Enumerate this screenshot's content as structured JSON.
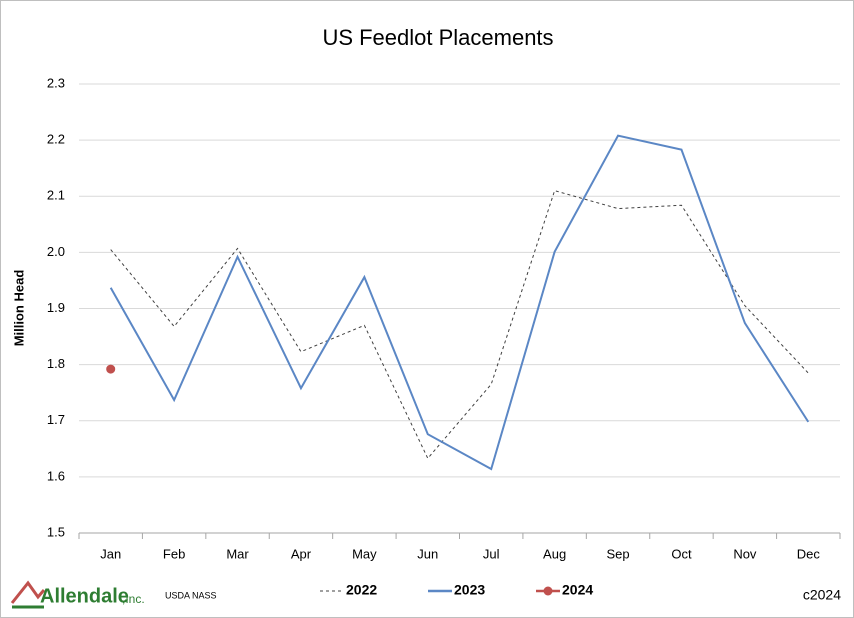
{
  "chart_data": {
    "type": "line",
    "title": "US Feedlot Placements",
    "ylabel": "Million Head",
    "categories": [
      "Jan",
      "Feb",
      "Mar",
      "Apr",
      "May",
      "Jun",
      "Jul",
      "Aug",
      "Sep",
      "Oct",
      "Nov",
      "Dec"
    ],
    "series": [
      {
        "name": "2022",
        "color": "#404040",
        "line_style": "dashed",
        "marker": false,
        "values": [
          2.005,
          1.868,
          2.007,
          1.823,
          1.87,
          1.633,
          1.765,
          2.11,
          2.078,
          2.084,
          1.905,
          1.785
        ]
      },
      {
        "name": "2023",
        "color": "#5b87c5",
        "line_style": "solid",
        "marker": false,
        "values": [
          1.937,
          1.737,
          1.992,
          1.758,
          1.956,
          1.676,
          1.614,
          2.001,
          2.208,
          2.183,
          1.874,
          1.698
        ]
      },
      {
        "name": "2024",
        "color": "#c0504d",
        "line_style": "solid",
        "marker": true,
        "values": [
          1.792,
          null,
          null,
          null,
          null,
          null,
          null,
          null,
          null,
          null,
          null,
          null
        ]
      }
    ],
    "ylim": [
      1.5,
      2.3
    ],
    "yticks": [
      1.5,
      1.6,
      1.7,
      1.8,
      1.9,
      {
        "value": 2,
        "label": "2.0"
      },
      2.1,
      2.2,
      2.3
    ],
    "grid": true,
    "legend": "bottom",
    "logo": "Allendale",
    "logo_suffix": ",Inc.",
    "source": "USDA NASS",
    "copyright": "c2024"
  }
}
